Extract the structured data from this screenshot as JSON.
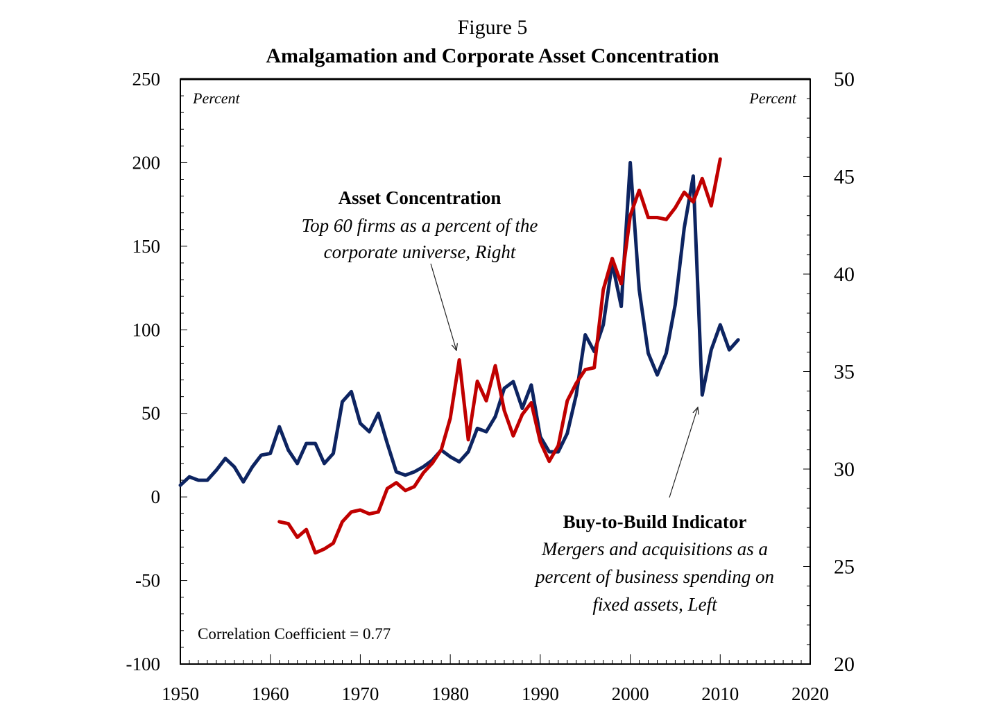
{
  "figure_label": "Figure 5",
  "chart_data": {
    "type": "line",
    "title": "Amalgamation and Corporate Asset Concentration",
    "x_ticks": [
      "1950",
      "1960",
      "1970",
      "1980",
      "1990",
      "2000",
      "2010",
      "2020"
    ],
    "xlim": [
      1950,
      2020
    ],
    "left_axis": {
      "unit": "Percent",
      "ylim": [
        -100,
        250
      ],
      "ticks": [
        "250",
        "200",
        "150",
        "100",
        "50",
        "0",
        "-50",
        "-100"
      ]
    },
    "right_axis": {
      "unit": "Percent",
      "ylim": [
        20,
        50
      ],
      "ticks": [
        "50",
        "45",
        "40",
        "35",
        "30",
        "25",
        "20"
      ]
    },
    "grid": false,
    "series": [
      {
        "name": "Buy-to-Build Indicator",
        "axis": "left",
        "color": "#0d2461",
        "x": [
          1950,
          1951,
          1952,
          1953,
          1954,
          1955,
          1956,
          1957,
          1958,
          1959,
          1960,
          1961,
          1962,
          1963,
          1964,
          1965,
          1966,
          1967,
          1968,
          1969,
          1970,
          1971,
          1972,
          1973,
          1974,
          1975,
          1976,
          1977,
          1978,
          1979,
          1980,
          1981,
          1982,
          1983,
          1984,
          1985,
          1986,
          1987,
          1988,
          1989,
          1990,
          1991,
          1992,
          1993,
          1994,
          1995,
          1996,
          1997,
          1998,
          1999,
          2000,
          2001,
          2002,
          2003,
          2004,
          2005,
          2006,
          2007,
          2008,
          2009,
          2010,
          2011,
          2012
        ],
        "y": [
          7,
          12,
          10,
          10,
          16,
          23,
          18,
          9,
          18,
          25,
          26,
          42,
          28,
          20,
          32,
          32,
          20,
          26,
          57,
          63,
          44,
          39,
          50,
          32,
          15,
          13,
          15,
          18,
          22,
          28,
          24,
          21,
          27,
          41,
          39,
          48,
          65,
          69,
          53,
          67,
          36,
          27,
          27,
          38,
          61,
          97,
          87,
          103,
          140,
          114,
          200,
          124,
          86,
          73,
          86,
          115,
          161,
          192,
          61,
          88,
          103,
          88,
          94
        ]
      },
      {
        "name": "Asset Concentration",
        "axis": "right",
        "color": "#c00000",
        "x": [
          1961,
          1962,
          1963,
          1964,
          1965,
          1966,
          1967,
          1968,
          1969,
          1970,
          1971,
          1972,
          1973,
          1974,
          1975,
          1976,
          1977,
          1978,
          1979,
          1980,
          1981,
          1982,
          1983,
          1984,
          1985,
          1986,
          1987,
          1988,
          1989,
          1990,
          1991,
          1992,
          1993,
          1994,
          1995,
          1996,
          1997,
          1998,
          1999,
          2000,
          2001,
          2002,
          2003,
          2004,
          2005,
          2006,
          2007,
          2008,
          2009,
          2010
        ],
        "y": [
          27.3,
          27.2,
          26.5,
          26.9,
          25.7,
          25.9,
          26.2,
          27.3,
          27.8,
          27.9,
          27.7,
          27.8,
          29.0,
          29.3,
          28.9,
          29.1,
          29.8,
          30.3,
          31.0,
          32.6,
          35.6,
          31.5,
          34.5,
          33.5,
          35.3,
          33.0,
          31.7,
          32.8,
          33.4,
          31.4,
          30.4,
          31.2,
          33.5,
          34.4,
          35.1,
          35.2,
          39.2,
          40.8,
          39.5,
          43.0,
          44.3,
          42.9,
          42.9,
          42.8,
          43.4,
          44.2,
          43.7,
          44.9,
          43.5,
          45.9
        ]
      }
    ],
    "annotations": {
      "asset": {
        "title": "Asset Concentration",
        "line1": "Top 60 firms as a percent of the",
        "line2": "corporate universe, Right"
      },
      "buy": {
        "title": "Buy-to-Build Indicator",
        "line1": "Mergers and acquisitions as a",
        "line2": "percent of business spending on",
        "line3": "fixed assets, Left"
      },
      "correlation": "Correlation Coefficient = 0.77"
    }
  }
}
